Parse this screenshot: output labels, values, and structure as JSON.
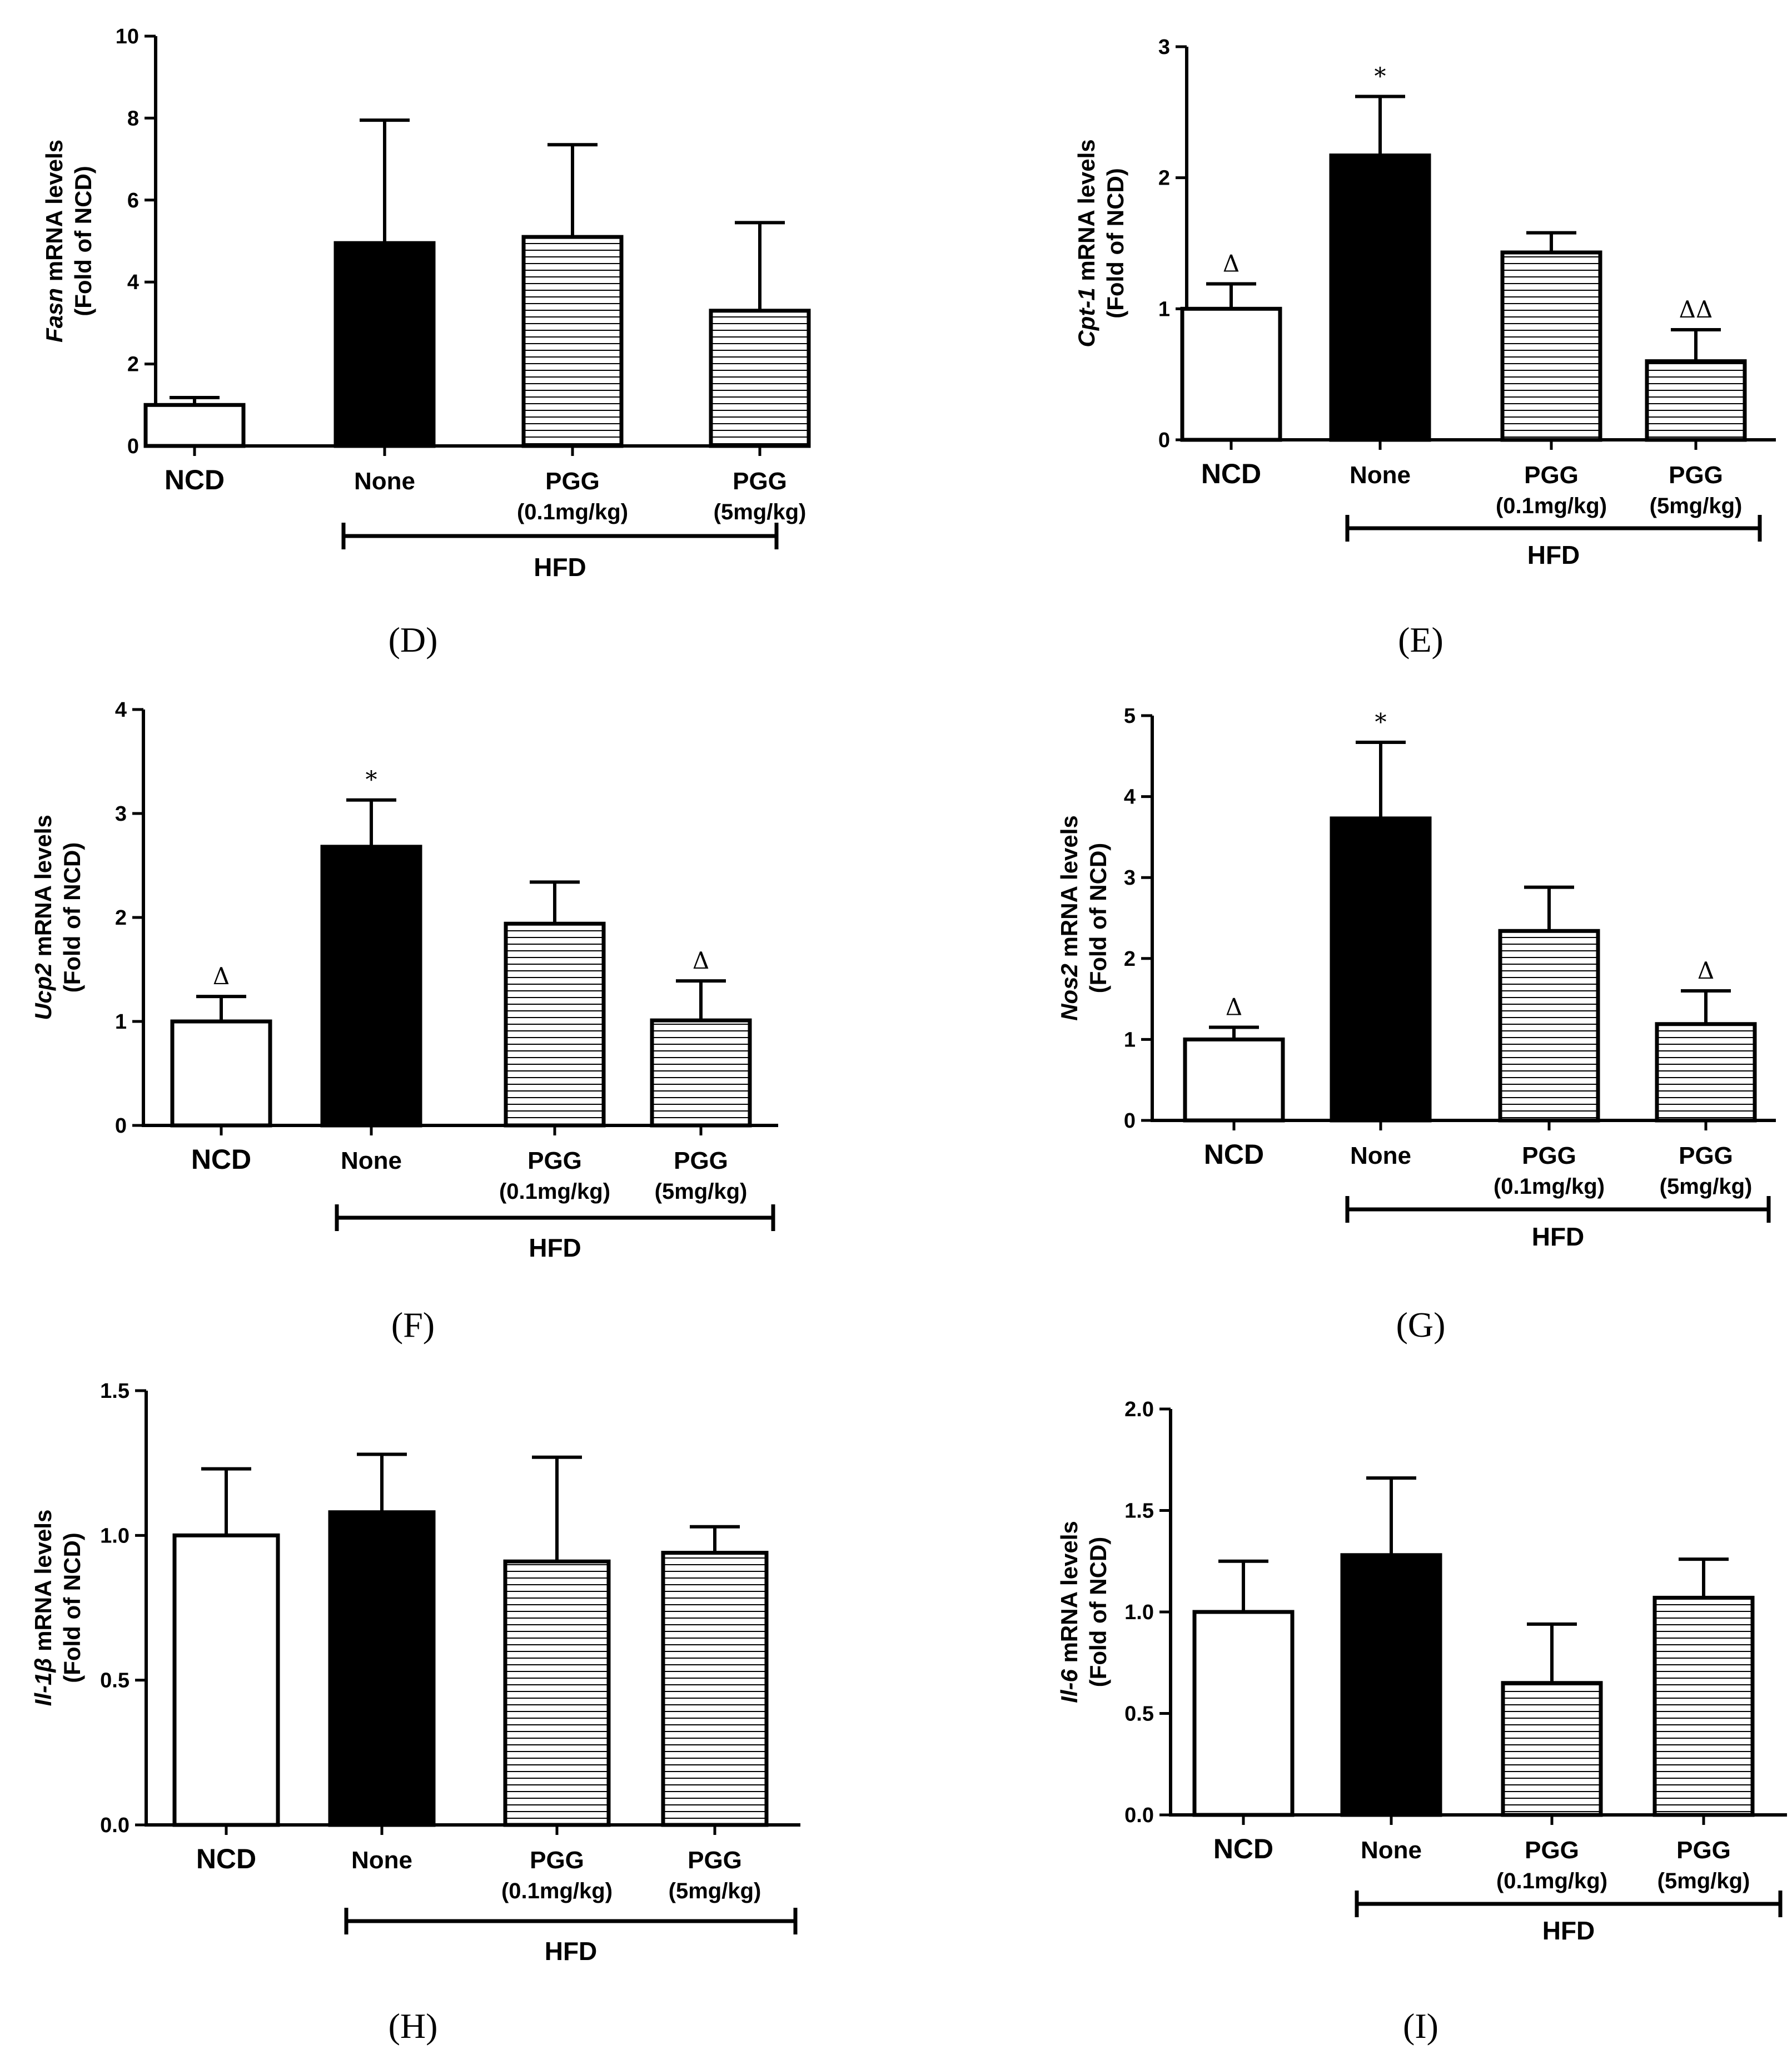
{
  "figure": {
    "type": "multi-panel bar chart",
    "bracket_label": "HFD"
  },
  "chart_data": [
    {
      "panel": "(D)",
      "type": "bar",
      "ylabel_gene": "Fasn",
      "ylabel_rest": " mRNA levels",
      "ylabel_line2": "(Fold of NCD)",
      "ylim": [
        0,
        10
      ],
      "ticks": [
        "0",
        "2",
        "4",
        "6",
        "8",
        "10"
      ],
      "tick_values": [
        0,
        2,
        4,
        6,
        8,
        10
      ],
      "categories": [
        {
          "line1": "NCD",
          "line2": ""
        },
        {
          "line1": "None",
          "line2": ""
        },
        {
          "line1": "PGG",
          "line2": "(0.1mg/kg)"
        },
        {
          "line1": "PGG",
          "line2": "(5mg/kg)"
        }
      ],
      "fills": [
        "white",
        "black",
        "hatched",
        "hatched"
      ],
      "values": [
        1.0,
        4.95,
        5.1,
        3.3
      ],
      "errors": [
        0.18,
        3.0,
        2.25,
        2.15
      ],
      "significance": [
        "",
        "",
        "",
        ""
      ],
      "bracket": "HFD",
      "bracket_span": [
        1,
        3
      ]
    },
    {
      "panel": "(E)",
      "type": "bar",
      "ylabel_gene": "Cpt-1",
      "ylabel_rest": " mRNA levels",
      "ylabel_line2": "(Fold of NCD)",
      "ylim": [
        0,
        3
      ],
      "ticks": [
        "0",
        "1",
        "2",
        "3"
      ],
      "tick_values": [
        0,
        1,
        2,
        3
      ],
      "categories": [
        {
          "line1": "NCD",
          "line2": ""
        },
        {
          "line1": "None",
          "line2": ""
        },
        {
          "line1": "PGG",
          "line2": "(0.1mg/kg)"
        },
        {
          "line1": "PGG",
          "line2": "(5mg/kg)"
        }
      ],
      "fills": [
        "white",
        "black",
        "hatched",
        "hatched"
      ],
      "values": [
        1.0,
        2.17,
        1.43,
        0.6
      ],
      "errors": [
        0.19,
        0.45,
        0.15,
        0.24
      ],
      "significance": [
        "Δ",
        "*",
        "",
        "ΔΔ"
      ],
      "bracket": "HFD",
      "bracket_span": [
        1,
        3
      ]
    },
    {
      "panel": "(F)",
      "type": "bar",
      "ylabel_gene": "Ucp2",
      "ylabel_rest": " mRNA levels",
      "ylabel_line2": "(Fold of NCD)",
      "ylim": [
        0,
        4
      ],
      "ticks": [
        "0",
        "1",
        "2",
        "3",
        "4"
      ],
      "tick_values": [
        0,
        1,
        2,
        3,
        4
      ],
      "categories": [
        {
          "line1": "NCD",
          "line2": ""
        },
        {
          "line1": "None",
          "line2": ""
        },
        {
          "line1": "PGG",
          "line2": "(0.1mg/kg)"
        },
        {
          "line1": "PGG",
          "line2": "(5mg/kg)"
        }
      ],
      "fills": [
        "white",
        "black",
        "hatched",
        "hatched"
      ],
      "values": [
        1.0,
        2.68,
        1.94,
        1.01
      ],
      "errors": [
        0.24,
        0.45,
        0.4,
        0.38
      ],
      "significance": [
        "Δ",
        "*",
        "",
        "Δ"
      ],
      "bracket": "HFD",
      "bracket_span": [
        1,
        3
      ]
    },
    {
      "panel": "(G)",
      "type": "bar",
      "ylabel_gene": "Nos2",
      "ylabel_rest": " mRNA levels",
      "ylabel_line2": "(Fold of NCD)",
      "ylim": [
        0,
        5
      ],
      "ticks": [
        "0",
        "1",
        "2",
        "3",
        "4",
        "5"
      ],
      "tick_values": [
        0,
        1,
        2,
        3,
        4,
        5
      ],
      "categories": [
        {
          "line1": "NCD",
          "line2": ""
        },
        {
          "line1": "None",
          "line2": ""
        },
        {
          "line1": "PGG",
          "line2": "(0.1mg/kg)"
        },
        {
          "line1": "PGG",
          "line2": "(5mg/kg)"
        }
      ],
      "fills": [
        "white",
        "black",
        "hatched",
        "hatched"
      ],
      "values": [
        1.0,
        3.73,
        2.34,
        1.19
      ],
      "errors": [
        0.15,
        0.94,
        0.54,
        0.41
      ],
      "significance": [
        "Δ",
        "*",
        "",
        "Δ"
      ],
      "bracket": "HFD",
      "bracket_span": [
        1,
        3
      ]
    },
    {
      "panel": "(H)",
      "type": "bar",
      "ylabel_gene": "Il-1β",
      "ylabel_rest": " mRNA levels",
      "ylabel_line2": "(Fold of NCD)",
      "ylim": [
        0,
        1.5
      ],
      "ticks": [
        "0.0",
        "0.5",
        "1.0",
        "1.5"
      ],
      "tick_values": [
        0,
        0.5,
        1.0,
        1.5
      ],
      "categories": [
        {
          "line1": "NCD",
          "line2": ""
        },
        {
          "line1": "None",
          "line2": ""
        },
        {
          "line1": "PGG",
          "line2": "(0.1mg/kg)"
        },
        {
          "line1": "PGG",
          "line2": "(5mg/kg)"
        }
      ],
      "fills": [
        "white",
        "black",
        "hatched",
        "hatched"
      ],
      "values": [
        1.0,
        1.08,
        0.91,
        0.94
      ],
      "errors": [
        0.23,
        0.2,
        0.36,
        0.09
      ],
      "significance": [
        "",
        "",
        "",
        ""
      ],
      "bracket": "HFD",
      "bracket_span": [
        1,
        3
      ]
    },
    {
      "panel": "(I)",
      "type": "bar",
      "ylabel_gene": "Il-6",
      "ylabel_rest": " mRNA levels",
      "ylabel_line2": "(Fold of NCD)",
      "ylim": [
        0,
        2.0
      ],
      "ticks": [
        "0.0",
        "0.5",
        "1.0",
        "1.5",
        "2.0"
      ],
      "tick_values": [
        0,
        0.5,
        1.0,
        1.5,
        2.0
      ],
      "categories": [
        {
          "line1": "NCD",
          "line2": ""
        },
        {
          "line1": "None",
          "line2": ""
        },
        {
          "line1": "PGG",
          "line2": "(0.1mg/kg)"
        },
        {
          "line1": "PGG",
          "line2": "(5mg/kg)"
        }
      ],
      "fills": [
        "white",
        "black",
        "hatched",
        "hatched"
      ],
      "values": [
        1.0,
        1.28,
        0.65,
        1.07
      ],
      "errors": [
        0.25,
        0.38,
        0.29,
        0.19
      ],
      "significance": [
        "",
        "",
        "",
        ""
      ],
      "bracket": "HFD",
      "bracket_span": [
        1,
        3
      ]
    }
  ]
}
